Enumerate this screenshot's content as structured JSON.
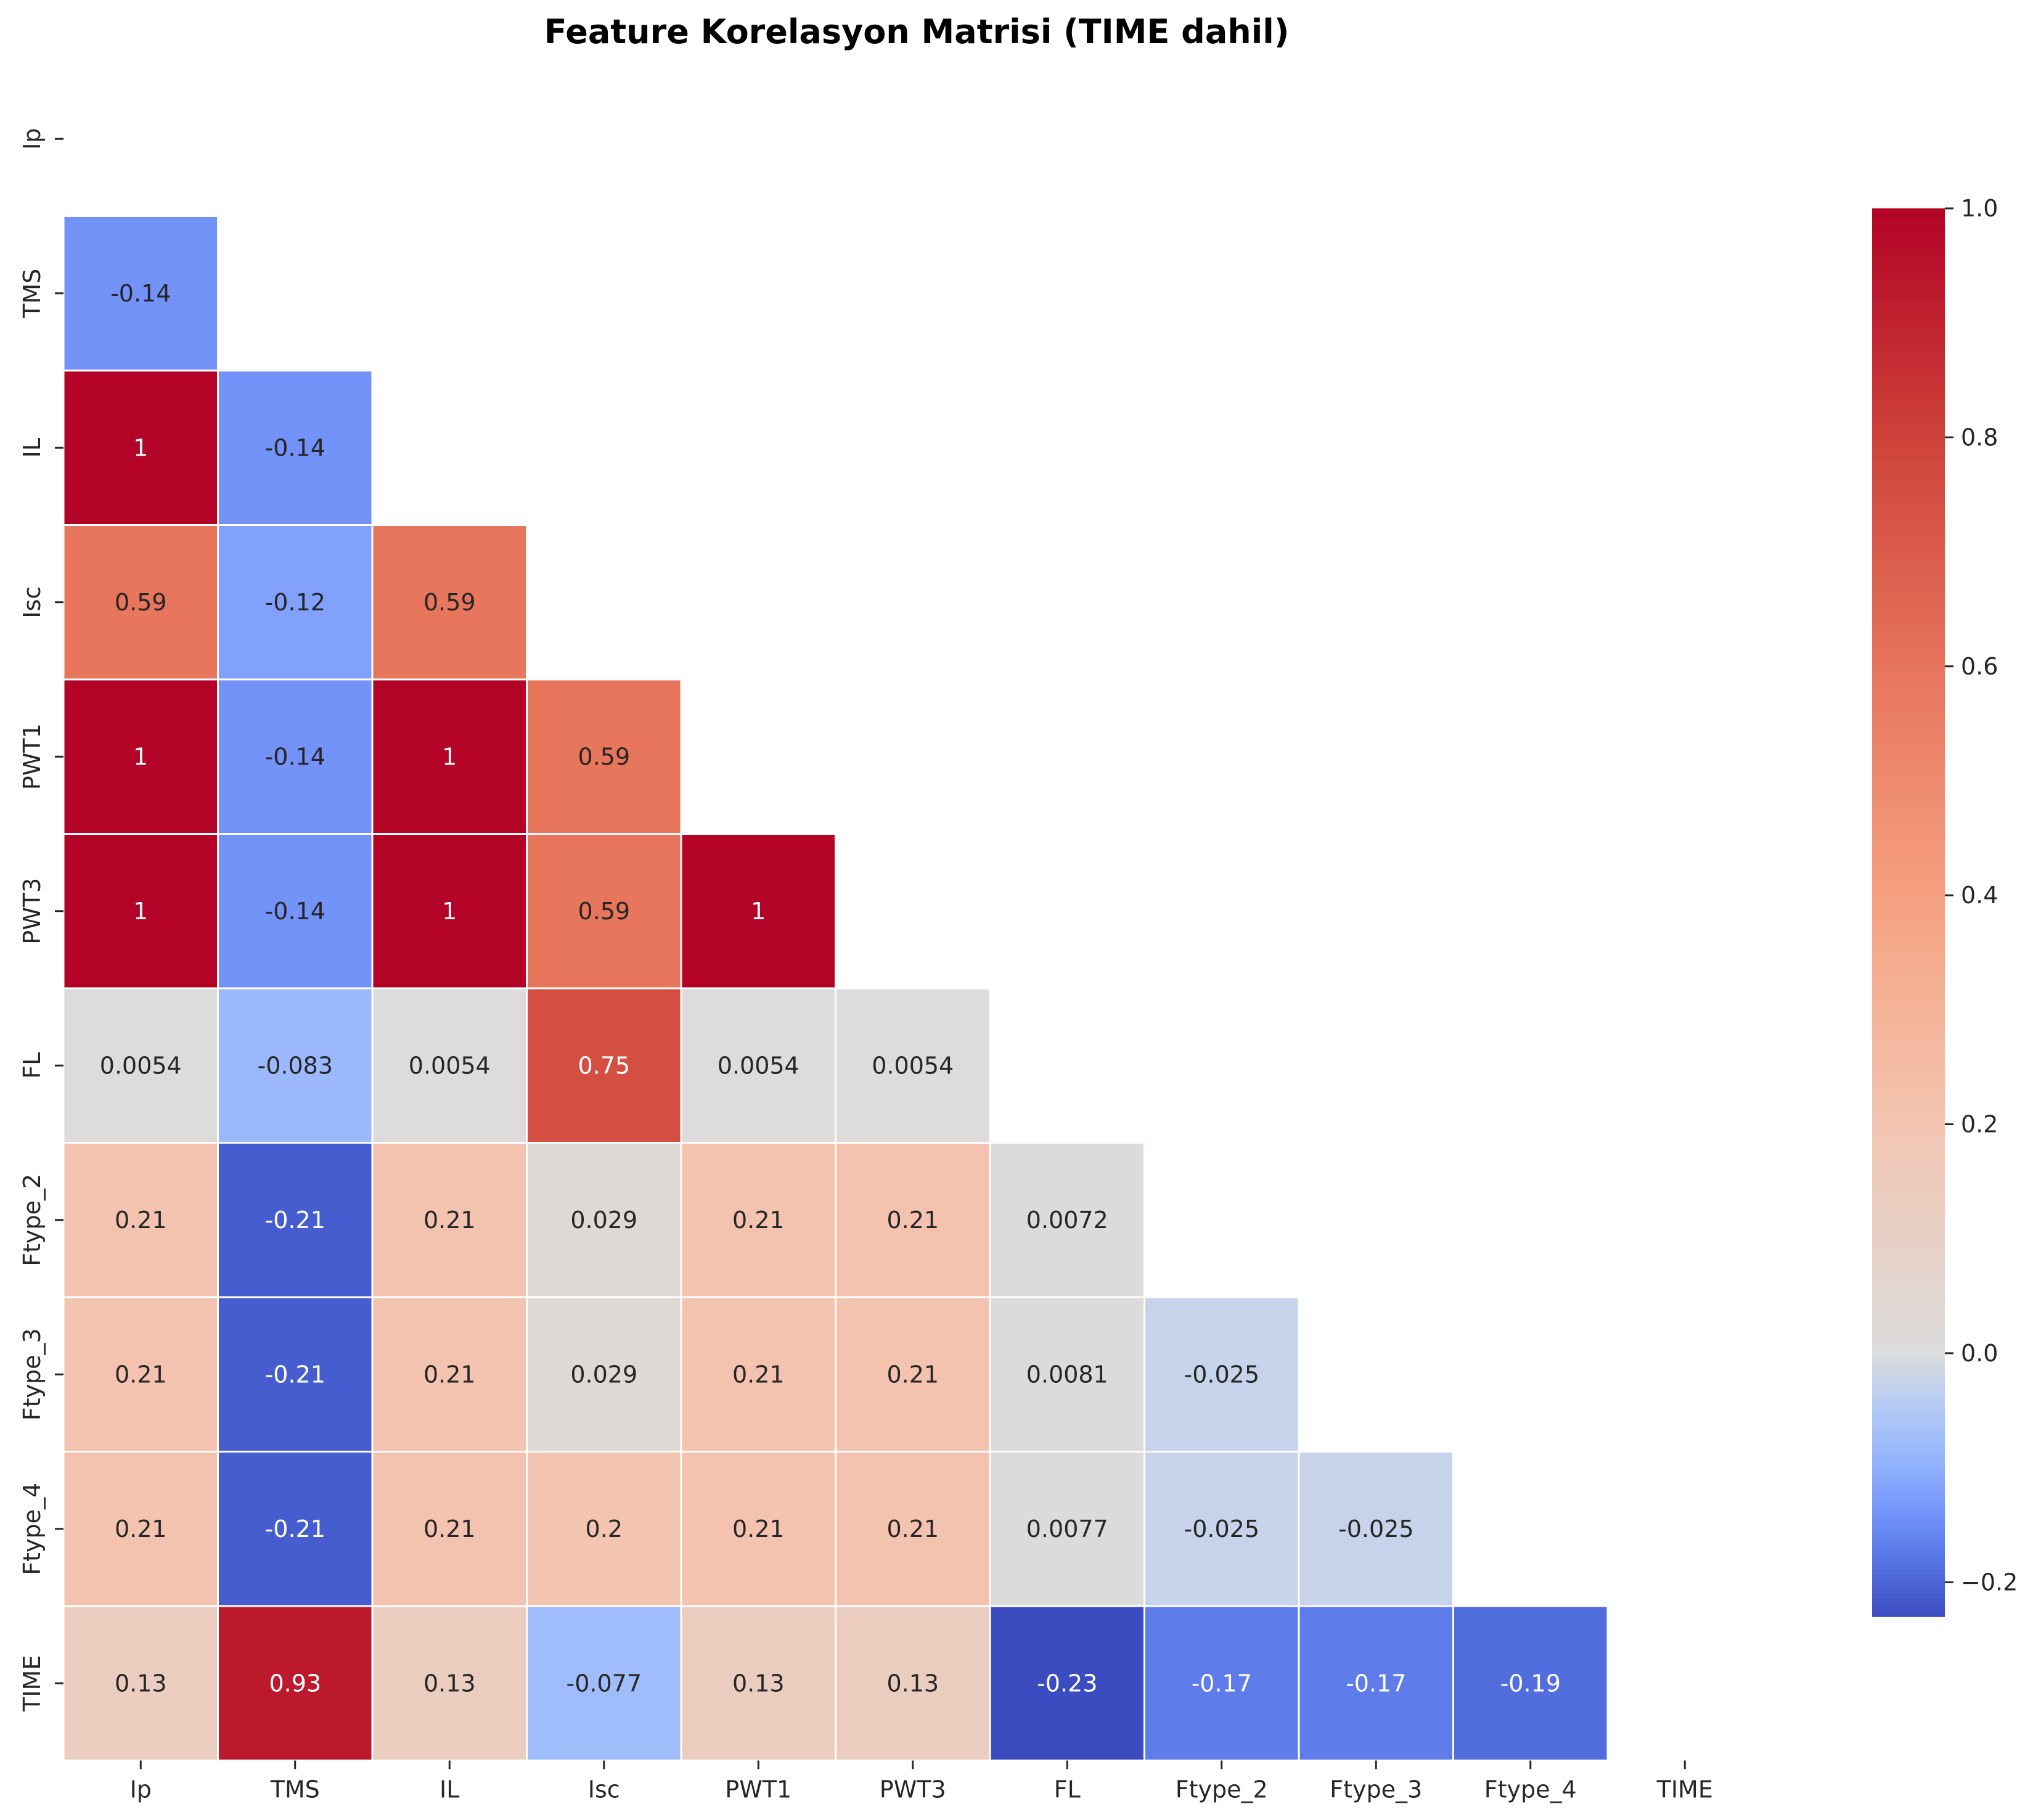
{
  "chart_data": {
    "type": "heatmap",
    "title": "Feature Korelasyon Matrisi (TIME dahil)",
    "labels": [
      "Ip",
      "TMS",
      "IL",
      "Isc",
      "PWT1",
      "PWT3",
      "FL",
      "Ftype_2",
      "Ftype_3",
      "Ftype_4",
      "TIME"
    ],
    "lower_triangle": [
      [],
      [
        "-0.14"
      ],
      [
        "1",
        "-0.14"
      ],
      [
        "0.59",
        "-0.12",
        "0.59"
      ],
      [
        "1",
        "-0.14",
        "1",
        "0.59"
      ],
      [
        "1",
        "-0.14",
        "1",
        "0.59",
        "1"
      ],
      [
        "0.0054",
        "-0.083",
        "0.0054",
        "0.75",
        "0.0054",
        "0.0054"
      ],
      [
        "0.21",
        "-0.21",
        "0.21",
        "0.029",
        "0.21",
        "0.21",
        "0.0072"
      ],
      [
        "0.21",
        "-0.21",
        "0.21",
        "0.029",
        "0.21",
        "0.21",
        "0.0081",
        "-0.025"
      ],
      [
        "0.21",
        "-0.21",
        "0.21",
        "0.2",
        "0.21",
        "0.21",
        "0.0077",
        "-0.025",
        "-0.025"
      ],
      [
        "0.13",
        "0.93",
        "0.13",
        "-0.077",
        "0.13",
        "0.13",
        "-0.23",
        "-0.17",
        "-0.17",
        "-0.19"
      ]
    ],
    "colorbar": {
      "vmin": -0.23,
      "vmax": 1.0,
      "ticks": [
        "1.0",
        "0.8",
        "0.6",
        "0.4",
        "0.2",
        "0.0",
        "−0.2"
      ],
      "tick_values": [
        1.0,
        0.8,
        0.6,
        0.4,
        0.2,
        0.0,
        -0.2
      ],
      "colormap": "coolwarm"
    },
    "grid": false,
    "legend": "right"
  }
}
